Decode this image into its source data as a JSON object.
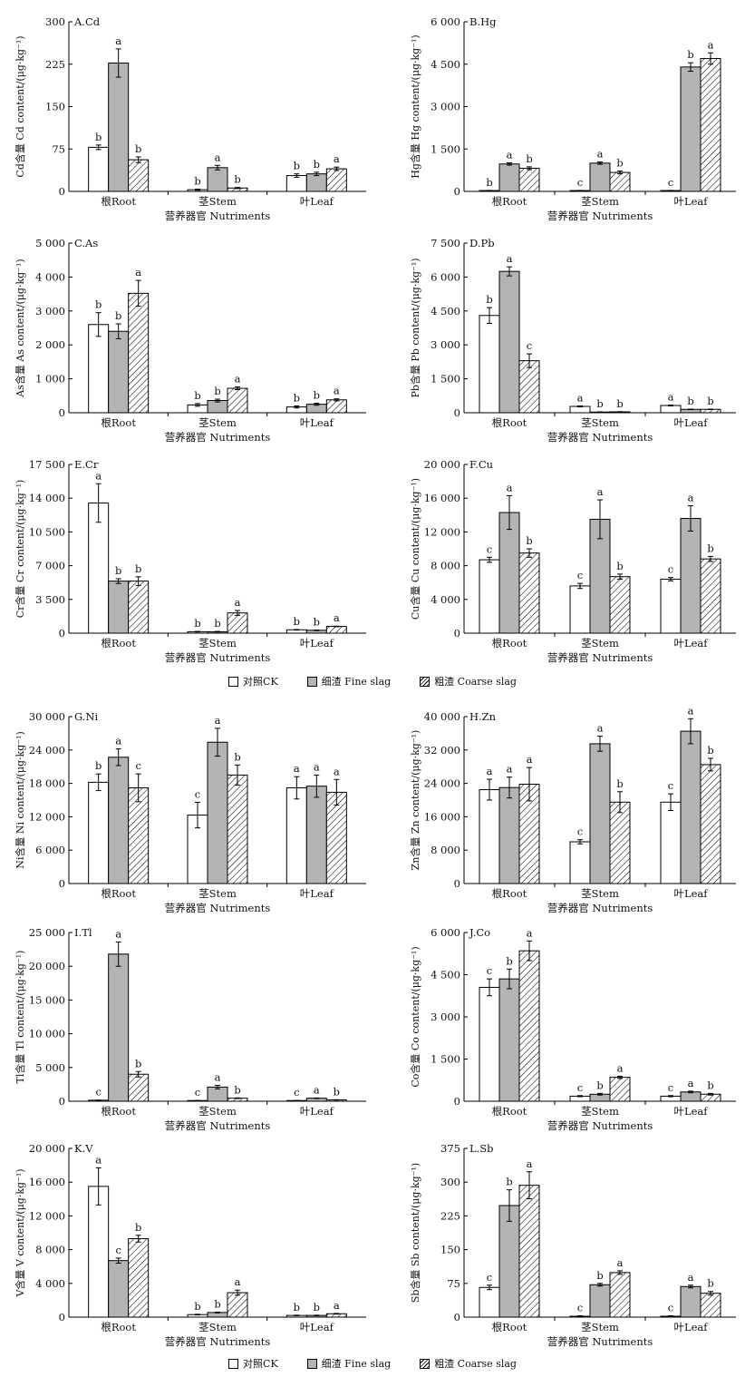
{
  "groups": [
    "根Root",
    "茎Stem",
    "叶Leaf"
  ],
  "xlabel": "营养器官 Nutriments",
  "legend": [
    {
      "label": "对照CK",
      "key": "ck"
    },
    {
      "label": "细渣 Fine slag",
      "key": "fine"
    },
    {
      "label": "粗渣 Coarse slag",
      "key": "coarse"
    }
  ],
  "colors": {
    "ck": "#ffffff",
    "fine": "#b4b4b4",
    "coarse": "hatch",
    "axis": "#000000"
  },
  "chart_data": [
    {
      "type": "bar",
      "title": "A.Cd",
      "ylabel": "Cd含量 Cd content/(μg·kg⁻¹)",
      "ylim": [
        0,
        300
      ],
      "yticks": [
        "0",
        "75",
        "150",
        "225",
        "300"
      ],
      "series": [
        {
          "name": "对照CK",
          "values": [
            78,
            3,
            28
          ],
          "errors": [
            4,
            1,
            3
          ],
          "letters": [
            "b",
            "b",
            "b"
          ]
        },
        {
          "name": "细渣 Fine slag",
          "values": [
            227,
            42,
            31
          ],
          "errors": [
            25,
            4,
            3
          ],
          "letters": [
            "a",
            "a",
            "b"
          ]
        },
        {
          "name": "粗渣 Coarse slag",
          "values": [
            56,
            6,
            40
          ],
          "errors": [
            5,
            1,
            3
          ],
          "letters": [
            "b",
            "b",
            "a"
          ]
        }
      ]
    },
    {
      "type": "bar",
      "title": "B.Hg",
      "ylabel": "Hg含量 Hg content/(μg·kg⁻¹)",
      "ylim": [
        0,
        6000
      ],
      "yticks": [
        "0",
        "1 500",
        "3 000",
        "4 500",
        "6 000"
      ],
      "series": [
        {
          "name": "对照CK",
          "values": [
            30,
            30,
            30
          ],
          "errors": [
            5,
            5,
            5
          ],
          "letters": [
            "b",
            "c",
            "c"
          ]
        },
        {
          "name": "细渣 Fine slag",
          "values": [
            970,
            1000,
            4400
          ],
          "errors": [
            40,
            40,
            150
          ],
          "letters": [
            "a",
            "a",
            "b"
          ]
        },
        {
          "name": "粗渣 Coarse slag",
          "values": [
            820,
            670,
            4700
          ],
          "errors": [
            50,
            50,
            200
          ],
          "letters": [
            "b",
            "b",
            "a"
          ]
        }
      ]
    },
    {
      "type": "bar",
      "title": "C.As",
      "ylabel": "As含量 As content/(μg·kg⁻¹)",
      "ylim": [
        0,
        5000
      ],
      "yticks": [
        "0",
        "1 000",
        "2 000",
        "3 000",
        "4 000",
        "5 000"
      ],
      "series": [
        {
          "name": "对照CK",
          "values": [
            2600,
            230,
            170
          ],
          "errors": [
            350,
            40,
            30
          ],
          "letters": [
            "b",
            "b",
            "b"
          ]
        },
        {
          "name": "细渣 Fine slag",
          "values": [
            2400,
            360,
            250
          ],
          "errors": [
            220,
            40,
            30
          ],
          "letters": [
            "b",
            "b",
            "b"
          ]
        },
        {
          "name": "粗渣 Coarse slag",
          "values": [
            3520,
            720,
            380
          ],
          "errors": [
            380,
            40,
            30
          ],
          "letters": [
            "a",
            "a",
            "a"
          ]
        }
      ]
    },
    {
      "type": "bar",
      "title": "D.Pb",
      "ylabel": "Pb含量 Pb content/(μg·kg⁻¹)",
      "ylim": [
        0,
        7500
      ],
      "yticks": [
        "0",
        "1 500",
        "3 000",
        "4 500",
        "6 000",
        "7 500"
      ],
      "series": [
        {
          "name": "对照CK",
          "values": [
            4300,
            280,
            320
          ],
          "errors": [
            350,
            20,
            20
          ],
          "letters": [
            "b",
            "a",
            "a"
          ]
        },
        {
          "name": "细渣 Fine slag",
          "values": [
            6250,
            30,
            150
          ],
          "errors": [
            200,
            10,
            10
          ],
          "letters": [
            "a",
            "b",
            "b"
          ]
        },
        {
          "name": "粗渣 Coarse slag",
          "values": [
            2300,
            40,
            150
          ],
          "errors": [
            300,
            10,
            10
          ],
          "letters": [
            "c",
            "b",
            "b"
          ]
        }
      ]
    },
    {
      "type": "bar",
      "title": "E.Cr",
      "ylabel": "Cr含量 Cr content/(μg·kg⁻¹)",
      "ylim": [
        0,
        17500
      ],
      "yticks": [
        "0",
        "3 500",
        "7 000",
        "10 500",
        "14 000",
        "17 500"
      ],
      "series": [
        {
          "name": "对照CK",
          "values": [
            13500,
            150,
            350
          ],
          "errors": [
            2000,
            30,
            30
          ],
          "letters": [
            "a",
            "b",
            "b"
          ]
        },
        {
          "name": "细渣 Fine slag",
          "values": [
            5400,
            150,
            300
          ],
          "errors": [
            250,
            30,
            30
          ],
          "letters": [
            "b",
            "b",
            "b"
          ]
        },
        {
          "name": "粗渣 Coarse slag",
          "values": [
            5400,
            2100,
            700
          ],
          "errors": [
            450,
            250,
            30
          ],
          "letters": [
            "b",
            "a",
            "a"
          ]
        }
      ]
    },
    {
      "type": "bar",
      "title": "F.Cu",
      "ylabel": "Cu含量 Cu content/(μg·kg⁻¹)",
      "ylim": [
        0,
        20000
      ],
      "yticks": [
        "0",
        "4 000",
        "8 000",
        "12 000",
        "16 000",
        "20 000"
      ],
      "series": [
        {
          "name": "对照CK",
          "values": [
            8700,
            5600,
            6400
          ],
          "errors": [
            300,
            300,
            200
          ],
          "letters": [
            "c",
            "c",
            "c"
          ]
        },
        {
          "name": "细渣 Fine slag",
          "values": [
            14300,
            13500,
            13600
          ],
          "errors": [
            2000,
            2300,
            1500
          ],
          "letters": [
            "a",
            "a",
            "a"
          ]
        },
        {
          "name": "粗渣 Coarse slag",
          "values": [
            9500,
            6700,
            8800
          ],
          "errors": [
            500,
            300,
            300
          ],
          "letters": [
            "b",
            "b",
            "b"
          ]
        }
      ]
    },
    {
      "type": "bar",
      "title": "G.Ni",
      "ylabel": "Ni含量 Ni content/(μg·kg⁻¹)",
      "ylim": [
        0,
        30000
      ],
      "yticks": [
        "0",
        "6 000",
        "12 000",
        "18 000",
        "24 000",
        "30 000"
      ],
      "series": [
        {
          "name": "对照CK",
          "values": [
            18200,
            12300,
            17200
          ],
          "errors": [
            1500,
            2300,
            2000
          ],
          "letters": [
            "b",
            "c",
            "a"
          ]
        },
        {
          "name": "细渣 Fine slag",
          "values": [
            22700,
            25400,
            17500
          ],
          "errors": [
            1500,
            2500,
            2000
          ],
          "letters": [
            "a",
            "a",
            "a"
          ]
        },
        {
          "name": "粗渣 Coarse slag",
          "values": [
            17200,
            19500,
            16400
          ],
          "errors": [
            2500,
            1800,
            2300
          ],
          "letters": [
            "c",
            "b",
            "a"
          ]
        }
      ]
    },
    {
      "type": "bar",
      "title": "H.Zn",
      "ylabel": "Zn含量 Zn content/(μg·kg⁻¹)",
      "ylim": [
        0,
        40000
      ],
      "yticks": [
        "0",
        "8 000",
        "16 000",
        "24 000",
        "32 000",
        "40 000"
      ],
      "series": [
        {
          "name": "对照CK",
          "values": [
            22500,
            10000,
            19500
          ],
          "errors": [
            2500,
            500,
            2000
          ],
          "letters": [
            "a",
            "c",
            "c"
          ]
        },
        {
          "name": "细渣 Fine slag",
          "values": [
            23000,
            33500,
            36500
          ],
          "errors": [
            2500,
            1800,
            3000
          ],
          "letters": [
            "a",
            "a",
            "a"
          ]
        },
        {
          "name": "粗渣 Coarse slag",
          "values": [
            23800,
            19500,
            28500
          ],
          "errors": [
            4000,
            2500,
            1500
          ],
          "letters": [
            "a",
            "b",
            "b"
          ]
        }
      ]
    },
    {
      "type": "bar",
      "title": "I.Tl",
      "ylabel": "Tl含量 Tl content/(μg·kg⁻¹)",
      "ylim": [
        0,
        25000
      ],
      "yticks": [
        "0",
        "5 000",
        "10 000",
        "15 000",
        "20 000",
        "25 000"
      ],
      "series": [
        {
          "name": "对照CK",
          "values": [
            150,
            100,
            100
          ],
          "errors": [
            20,
            20,
            20
          ],
          "letters": [
            "c",
            "c",
            "c"
          ]
        },
        {
          "name": "细渣 Fine slag",
          "values": [
            21800,
            2100,
            450
          ],
          "errors": [
            1800,
            250,
            40
          ],
          "letters": [
            "a",
            "a",
            "a"
          ]
        },
        {
          "name": "粗渣 Coarse slag",
          "values": [
            4000,
            450,
            200
          ],
          "errors": [
            400,
            50,
            30
          ],
          "letters": [
            "b",
            "b",
            "b"
          ]
        }
      ]
    },
    {
      "type": "bar",
      "title": "J.Co",
      "ylabel": "Co含量 Co content/(μg·kg⁻¹)",
      "ylim": [
        0,
        6000
      ],
      "yticks": [
        "0",
        "1 500",
        "3 000",
        "4 500",
        "6 000"
      ],
      "series": [
        {
          "name": "对照CK",
          "values": [
            4050,
            180,
            180
          ],
          "errors": [
            300,
            20,
            20
          ],
          "letters": [
            "c",
            "c",
            "c"
          ]
        },
        {
          "name": "细渣 Fine slag",
          "values": [
            4350,
            250,
            330
          ],
          "errors": [
            350,
            30,
            30
          ],
          "letters": [
            "b",
            "b",
            "a"
          ]
        },
        {
          "name": "粗渣 Coarse slag",
          "values": [
            5350,
            850,
            250
          ],
          "errors": [
            350,
            40,
            30
          ],
          "letters": [
            "a",
            "a",
            "b"
          ]
        }
      ]
    },
    {
      "type": "bar",
      "title": "K.V",
      "ylabel": "V含量 V content/(μg·kg⁻¹)",
      "ylim": [
        0,
        20000
      ],
      "yticks": [
        "0",
        "4 000",
        "8 000",
        "12 000",
        "16 000",
        "20 000"
      ],
      "series": [
        {
          "name": "对照CK",
          "values": [
            15500,
            300,
            200
          ],
          "errors": [
            2200,
            40,
            30
          ],
          "letters": [
            "a",
            "b",
            "b"
          ]
        },
        {
          "name": "细渣 Fine slag",
          "values": [
            6700,
            550,
            200
          ],
          "errors": [
            300,
            50,
            30
          ],
          "letters": [
            "c",
            "b",
            "b"
          ]
        },
        {
          "name": "粗渣 Coarse slag",
          "values": [
            9300,
            2900,
            400
          ],
          "errors": [
            400,
            300,
            40
          ],
          "letters": [
            "b",
            "a",
            "a"
          ]
        }
      ]
    },
    {
      "type": "bar",
      "title": "L.Sb",
      "ylabel": "Sb含量 Sb content/(μg·kg⁻¹)",
      "ylim": [
        0,
        375
      ],
      "yticks": [
        "0",
        "75",
        "150",
        "225",
        "300",
        "375"
      ],
      "series": [
        {
          "name": "对照CK",
          "values": [
            66,
            2,
            2
          ],
          "errors": [
            5,
            1,
            1
          ],
          "letters": [
            "c",
            "c",
            "c"
          ]
        },
        {
          "name": "细渣 Fine slag",
          "values": [
            248,
            72,
            68
          ],
          "errors": [
            35,
            3,
            3
          ],
          "letters": [
            "b",
            "b",
            "a"
          ]
        },
        {
          "name": "粗渣 Coarse slag",
          "values": [
            293,
            99,
            53
          ],
          "errors": [
            30,
            4,
            4
          ],
          "letters": [
            "a",
            "a",
            "b"
          ]
        }
      ]
    }
  ]
}
